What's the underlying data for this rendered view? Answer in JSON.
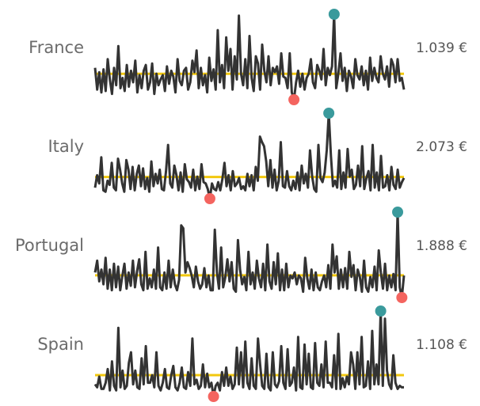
{
  "chart_data": {
    "type": "line",
    "colors": {
      "line": "#333333",
      "reference": "#F2C80F",
      "max_marker": "#3A9A9C",
      "min_marker": "#F4645F"
    },
    "rows": [
      {
        "label": "France",
        "value_label": "1.039 €",
        "values": [
          3.0,
          1.5,
          2.7,
          1.3,
          2.9,
          1.4,
          3.6,
          2.2,
          1.2,
          3.0,
          1.8,
          4.5,
          1.6,
          2.3,
          1.4,
          3.2,
          1.7,
          2.8,
          2.0,
          3.5,
          1.3,
          2.5,
          1.6,
          2.8,
          3.2,
          1.5,
          2.0,
          3.3,
          1.2,
          2.6,
          1.8,
          2.2,
          2.5,
          1.4,
          3.1,
          1.9,
          2.8,
          2.4,
          1.3,
          3.6,
          2.1,
          1.8,
          2.8,
          3.0,
          1.5,
          2.0,
          3.5,
          2.7,
          4.2,
          1.6,
          3.0,
          1.8,
          2.5,
          1.3,
          3.7,
          2.1,
          2.9,
          1.5,
          5.6,
          2.0,
          3.2,
          1.6,
          5.1,
          2.8,
          4.3,
          1.5,
          3.8,
          2.2,
          6.6,
          2.6,
          1.8,
          3.6,
          1.6,
          5.2,
          2.3,
          1.4,
          3.8,
          3.3,
          1.5,
          4.6,
          2.8,
          2.0,
          3.8,
          1.8,
          3.0,
          2.7,
          3.1,
          1.9,
          4.0,
          2.4,
          2.3,
          1.6,
          4.0,
          1.3,
          0.8,
          2.0,
          2.8,
          1.7,
          2.6,
          1.5,
          2.3,
          2.6,
          3.6,
          2.0,
          1.6,
          3.2,
          2.8,
          2.2,
          4.3,
          1.8,
          3.0,
          2.5,
          3.1,
          6.7,
          1.6,
          2.6,
          4.0,
          2.1,
          3.0,
          1.4,
          2.8,
          2.4,
          1.6,
          3.6,
          2.5,
          2.2,
          3.1,
          1.8,
          2.8,
          1.5,
          3.7,
          2.1,
          3.0,
          2.3,
          2.0,
          3.8,
          2.6,
          2.2,
          3.1,
          1.7,
          3.6,
          3.2,
          2.0,
          3.6,
          2.1,
          2.3,
          1.5
        ]
      },
      {
        "label": "Italy",
        "value_label": "2.073 €",
        "values": [
          1.5,
          2.4,
          1.8,
          3.7,
          1.3,
          1.2,
          2.0,
          1.7,
          3.3,
          1.5,
          1.3,
          3.6,
          2.8,
          1.8,
          1.2,
          3.5,
          2.8,
          1.4,
          3.0,
          1.3,
          2.5,
          3.1,
          1.6,
          2.9,
          1.4,
          2.2,
          1.2,
          3.4,
          1.6,
          2.5,
          1.8,
          2.8,
          1.4,
          1.3,
          2.7,
          4.6,
          1.8,
          1.5,
          3.1,
          2.4,
          1.3,
          2.6,
          1.2,
          3.2,
          2.1,
          1.9,
          1.5,
          2.8,
          1.3,
          2.3,
          1.4,
          3.2,
          1.9,
          1.8,
          1.4,
          0.7,
          1.8,
          1.4,
          1.3,
          1.9,
          1.3,
          2.1,
          3.3,
          1.6,
          2.4,
          1.3,
          2.7,
          1.6,
          1.8,
          2.2,
          1.4,
          1.6,
          1.3,
          2.5,
          1.6,
          2.4,
          1.3,
          3.0,
          2.0,
          5.2,
          4.8,
          4.5,
          3.4,
          1.6,
          3.5,
          1.5,
          2.8,
          1.3,
          2.0,
          4.8,
          1.6,
          1.5,
          2.7,
          1.6,
          1.3,
          2.0,
          1.4,
          2.6,
          1.3,
          3.1,
          1.8,
          2.5,
          1.5,
          4.2,
          2.3,
          1.4,
          1.2,
          4.6,
          2.2,
          1.9,
          2.6,
          4.2,
          6.9,
          3.8,
          1.6,
          2.0,
          1.5,
          4.2,
          1.4,
          2.6,
          1.5,
          4.3,
          2.3,
          2.8,
          1.4,
          1.7,
          3.1,
          1.6,
          4.5,
          1.4,
          2.2,
          2.7,
          1.3,
          4.6,
          1.5,
          2.6,
          1.3,
          3.8,
          1.5,
          1.6,
          2.4,
          1.3,
          3.0,
          1.7,
          1.4,
          2.8,
          1.5,
          1.9,
          2.2
        ]
      },
      {
        "label": "Portugal",
        "value_label": "1.888 €",
        "values": [
          2.6,
          3.4,
          2.0,
          2.8,
          1.8,
          3.6,
          1.5,
          2.8,
          1.4,
          3.2,
          1.6,
          3.0,
          1.4,
          2.4,
          3.2,
          1.5,
          2.6,
          1.7,
          3.4,
          1.6,
          2.7,
          3.5,
          1.8,
          1.4,
          4.0,
          1.5,
          2.2,
          1.6,
          2.8,
          1.5,
          4.3,
          1.6,
          1.4,
          2.6,
          1.5,
          3.4,
          1.6,
          2.8,
          1.8,
          1.4,
          2.1,
          5.8,
          5.6,
          2.6,
          3.3,
          2.9,
          2.4,
          1.6,
          3.0,
          2.0,
          1.5,
          1.8,
          2.9,
          1.6,
          2.4,
          1.4,
          1.4,
          5.5,
          2.6,
          1.5,
          4.3,
          1.6,
          2.3,
          3.5,
          2.0,
          3.3,
          1.5,
          1.3,
          4.8,
          2.8,
          1.8,
          2.3,
          1.4,
          4.0,
          1.8,
          2.6,
          1.5,
          3.4,
          2.2,
          1.6,
          3.2,
          1.4,
          4.5,
          2.0,
          1.5,
          3.3,
          1.8,
          3.9,
          1.4,
          2.8,
          1.4,
          3.2,
          1.6,
          2.4,
          2.2,
          2.6,
          1.8,
          2.4,
          2.2,
          1.3,
          3.6,
          2.2,
          1.5,
          2.8,
          1.4,
          2.6,
          1.6,
          1.4,
          2.0,
          2.4,
          1.6,
          3.1,
          1.5,
          4.5,
          2.6,
          3.7,
          1.5,
          2.8,
          1.6,
          2.9,
          1.5,
          4.0,
          2.3,
          3.1,
          1.4,
          2.8,
          2.3,
          1.3,
          3.4,
          1.6,
          1.3,
          2.3,
          1.6,
          3.0,
          1.4,
          4.1,
          2.6,
          1.5,
          3.2,
          1.4,
          2.4,
          1.6,
          2.5,
          1.4,
          6.7,
          1.6,
          0.9,
          2.4
        ]
      },
      {
        "label": "Spain",
        "value_label": "1.108 €",
        "values": [
          1.5,
          1.3,
          2.0,
          1.2,
          1.2,
          1.6,
          2.5,
          1.1,
          3.0,
          1.4,
          1.1,
          5.2,
          1.3,
          2.4,
          1.2,
          1.4,
          2.9,
          3.6,
          1.5,
          2.4,
          1.3,
          1.2,
          3.2,
          1.5,
          4.0,
          1.6,
          1.6,
          2.1,
          1.3,
          3.6,
          1.4,
          1.1,
          1.6,
          2.5,
          1.3,
          1.2,
          2.1,
          2.7,
          1.3,
          1.1,
          1.6,
          2.6,
          1.3,
          1.2,
          2.3,
          1.4,
          4.5,
          1.5,
          1.8,
          1.2,
          1.4,
          2.8,
          1.3,
          2.2,
          1.3,
          1.6,
          0.7,
          1.4,
          1.6,
          1.1,
          2.3,
          1.4,
          2.6,
          1.4,
          2.0,
          1.2,
          1.5,
          3.9,
          1.5,
          3.6,
          1.3,
          4.3,
          1.6,
          1.2,
          3.2,
          1.4,
          1.2,
          4.5,
          2.8,
          1.4,
          1.2,
          3.5,
          1.3,
          1.1,
          3.6,
          1.5,
          1.3,
          1.7,
          4.0,
          1.6,
          1.2,
          3.8,
          1.4,
          1.6,
          2.6,
          1.1,
          4.6,
          1.3,
          1.2,
          4.1,
          1.5,
          3.5,
          1.3,
          1.2,
          4.2,
          1.6,
          1.4,
          2.8,
          1.3,
          4.3,
          1.6,
          1.6,
          1.3,
          3.4,
          1.2,
          4.8,
          1.2,
          1.9,
          1.3,
          2.0,
          1.5,
          3.6,
          2.8,
          1.2,
          3.6,
          1.5,
          4.6,
          1.3,
          1.4,
          3.0,
          1.2,
          5.0,
          1.5,
          2.8,
          1.5,
          6.3,
          1.4,
          5.8,
          2.4,
          1.5,
          1.2,
          3.4,
          1.6,
          1.2,
          1.4,
          1.3,
          1.3
        ]
      }
    ]
  }
}
